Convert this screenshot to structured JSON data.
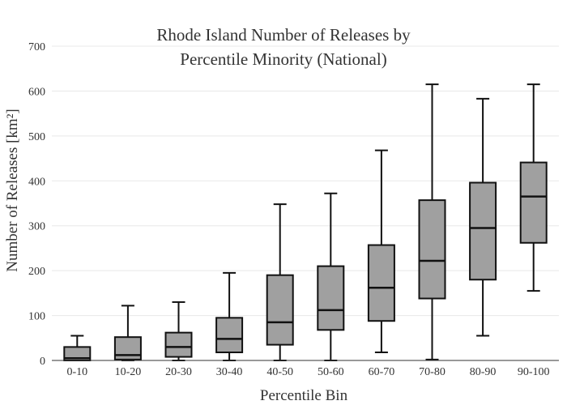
{
  "chart_data": {
    "type": "box",
    "title_lines": [
      "Rhode Island Number of Releases by",
      "Percentile Minority (National)"
    ],
    "xlabel": "Percentile Bin",
    "ylabel": "Number of Releases [km²]",
    "ylim": [
      0,
      700
    ],
    "yticks": [
      "0",
      "100",
      "200",
      "300",
      "400",
      "500",
      "600",
      "700"
    ],
    "grid": true,
    "box_color": "#a0a0a0",
    "categories": [
      "0-10",
      "10-20",
      "20-30",
      "30-40",
      "40-50",
      "50-60",
      "60-70",
      "70-80",
      "80-90",
      "90-100"
    ],
    "boxes": [
      {
        "min": 0,
        "q1": 0,
        "median": 5,
        "q3": 30,
        "max": 55
      },
      {
        "min": 0,
        "q1": 2,
        "median": 12,
        "q3": 52,
        "max": 122
      },
      {
        "min": 0,
        "q1": 8,
        "median": 30,
        "q3": 62,
        "max": 130
      },
      {
        "min": 0,
        "q1": 18,
        "median": 48,
        "q3": 95,
        "max": 195
      },
      {
        "min": 0,
        "q1": 35,
        "median": 85,
        "q3": 190,
        "max": 348
      },
      {
        "min": 0,
        "q1": 68,
        "median": 112,
        "q3": 210,
        "max": 372
      },
      {
        "min": 18,
        "q1": 88,
        "median": 162,
        "q3": 257,
        "max": 468
      },
      {
        "min": 2,
        "q1": 138,
        "median": 222,
        "q3": 357,
        "max": 615
      },
      {
        "min": 55,
        "q1": 180,
        "median": 295,
        "q3": 396,
        "max": 583
      },
      {
        "min": 155,
        "q1": 262,
        "median": 365,
        "q3": 441,
        "max": 615
      }
    ]
  }
}
